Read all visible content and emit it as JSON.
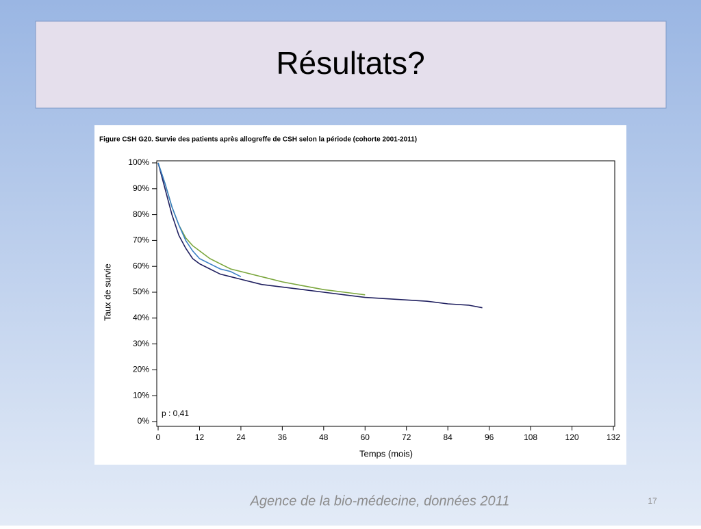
{
  "slide": {
    "title": "Résultats?",
    "source": "Agence de la bio-médecine, données 2011",
    "number": "17"
  },
  "chart_data": {
    "type": "line",
    "title": "Figure CSH G20. Survie des patients après allogreffe de CSH selon la période (cohorte 2001-2011)",
    "xlabel": "Temps (mois)",
    "ylabel": "Taux de survie",
    "annotation": "p : 0,41",
    "xlim": [
      0,
      132
    ],
    "ylim": [
      0,
      100
    ],
    "xticks": [
      0,
      12,
      24,
      36,
      48,
      60,
      72,
      84,
      96,
      108,
      120,
      132
    ],
    "yticks": [
      {
        "value": 0,
        "label": "0%"
      },
      {
        "value": 10,
        "label": "10%"
      },
      {
        "value": 20,
        "label": "20%"
      },
      {
        "value": 30,
        "label": "30%"
      },
      {
        "value": 40,
        "label": "40%"
      },
      {
        "value": 50,
        "label": "50%"
      },
      {
        "value": 60,
        "label": "60%"
      },
      {
        "value": 70,
        "label": "70%"
      },
      {
        "value": 80,
        "label": "80%"
      },
      {
        "value": 90,
        "label": "90%"
      },
      {
        "value": 100,
        "label": "100%"
      }
    ],
    "grid": false,
    "series": [
      {
        "color": "#7aa63c",
        "x": [
          0,
          2,
          4,
          6,
          8,
          10,
          12,
          15,
          18,
          21,
          24,
          30,
          36,
          42,
          48,
          54,
          60
        ],
        "values": [
          100,
          92,
          83,
          76,
          71,
          68,
          66,
          63,
          61,
          59,
          58,
          56,
          54,
          52.5,
          51,
          50,
          49
        ]
      },
      {
        "color": "#1f1f5f",
        "x": [
          0,
          2,
          4,
          6,
          8,
          10,
          12,
          15,
          18,
          21,
          24,
          30,
          36,
          42,
          48,
          54,
          60,
          66,
          72,
          78,
          84,
          90,
          94
        ],
        "values": [
          100,
          90,
          80,
          72,
          67,
          63,
          61,
          59,
          57,
          56,
          55,
          53,
          52,
          51,
          50,
          49,
          48,
          47.5,
          47,
          46.5,
          45.5,
          45,
          44
        ]
      },
      {
        "color": "#3a7fc4",
        "x": [
          0,
          2,
          4,
          6,
          8,
          10,
          12,
          15,
          18,
          21,
          24
        ],
        "values": [
          100,
          92,
          83,
          76,
          70,
          66,
          63,
          61,
          59,
          58,
          56
        ]
      }
    ]
  }
}
